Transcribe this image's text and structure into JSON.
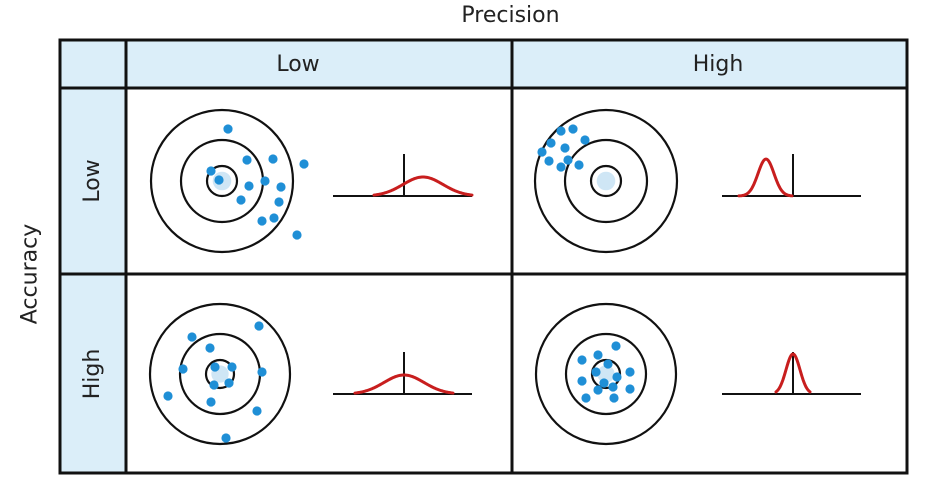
{
  "title_precision": "Precision",
  "title_accuracy": "Accuracy",
  "columns": [
    "Low",
    "High"
  ],
  "rows": [
    "Low",
    "High"
  ],
  "colors": {
    "header_fill": "#dbeef9",
    "border": "#111111",
    "dot": "#1f8fd6",
    "curve": "#c81e1e",
    "target_center": "#cfe6f5"
  },
  "cells": [
    {
      "accuracy": "Low",
      "precision": "Low",
      "spread": "wide",
      "offset": "off-center"
    },
    {
      "accuracy": "Low",
      "precision": "High",
      "spread": "narrow",
      "offset": "off-center"
    },
    {
      "accuracy": "High",
      "precision": "Low",
      "spread": "wide",
      "offset": "centered"
    },
    {
      "accuracy": "High",
      "precision": "High",
      "spread": "narrow",
      "offset": "centered"
    }
  ]
}
